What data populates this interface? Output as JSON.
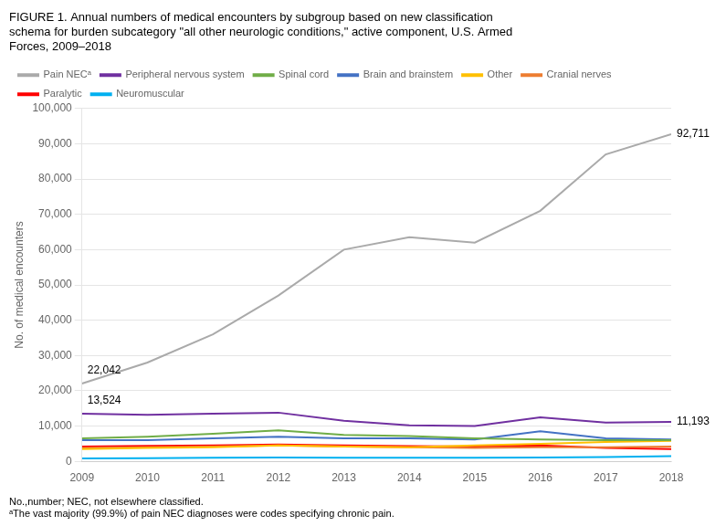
{
  "chart_data": {
    "type": "line",
    "title": "FIGURE 1. Annual numbers of medical encounters by subgroup based on new classification\nschema for burden subcategory \"all other neurologic conditions,\" active component, U.S. Armed\nForces, 2009–2018",
    "ylabel": "No. of medical encounters",
    "x": [
      2009,
      2010,
      2011,
      2012,
      2013,
      2014,
      2015,
      2016,
      2017,
      2018
    ],
    "xlim": [
      2009,
      2018
    ],
    "xticks": [
      2009,
      2010,
      2011,
      2012,
      2013,
      2014,
      2015,
      2016,
      2017,
      2018
    ],
    "ylim": [
      0,
      100000
    ],
    "yticks": [
      0,
      {
        "value": 10000,
        "label": "10,000"
      },
      {
        "value": 20000,
        "label": "20,000"
      },
      {
        "value": 30000,
        "label": "30,000"
      },
      {
        "value": 40000,
        "label": "40,000"
      },
      {
        "value": 50000,
        "label": "50,000"
      },
      {
        "value": 60000,
        "label": "60,000"
      },
      {
        "value": 70000,
        "label": "70,000"
      },
      {
        "value": 80000,
        "label": "80,000"
      },
      {
        "value": 90000,
        "label": "90,000"
      },
      {
        "value": 100000,
        "label": "100,000"
      }
    ],
    "series": [
      {
        "name": "Pain NECᵃ",
        "color": "#aaaaaa",
        "values": [
          22042,
          28000,
          36000,
          47000,
          60000,
          63500,
          62000,
          71000,
          87000,
          92711
        ]
      },
      {
        "name": "Peripheral nervous system",
        "color": "#7030a0",
        "values": [
          13524,
          13200,
          13500,
          13800,
          11500,
          10200,
          10000,
          12500,
          11000,
          11193
        ]
      },
      {
        "name": "Spinal cord",
        "color": "#70ad47",
        "values": [
          6500,
          7000,
          7800,
          8800,
          7500,
          7200,
          6500,
          6200,
          6000,
          6000
        ]
      },
      {
        "name": "Brain and brainstem",
        "color": "#4472c4",
        "values": [
          6000,
          6000,
          6500,
          7000,
          6500,
          6500,
          6200,
          8500,
          6500,
          6200
        ]
      },
      {
        "name": "Other",
        "color": "#ffc000",
        "values": [
          3500,
          3800,
          4000,
          4500,
          4200,
          4000,
          4500,
          5000,
          5500,
          5800
        ]
      },
      {
        "name": "Cranial nerves",
        "color": "#ed7d31",
        "values": [
          3800,
          4000,
          4200,
          4500,
          4200,
          4000,
          3800,
          4000,
          4000,
          4200
        ]
      },
      {
        "name": "Paralytic",
        "color": "#ff0000",
        "values": [
          4200,
          4400,
          4500,
          4800,
          4500,
          4300,
          4200,
          4500,
          3800,
          3500
        ]
      },
      {
        "name": "Neuromuscular",
        "color": "#00b0f0",
        "values": [
          800,
          900,
          1000,
          1100,
          1000,
          1000,
          1000,
          1100,
          1200,
          1500
        ]
      }
    ],
    "annotations": [
      {
        "text": "22,042",
        "x": 2009,
        "y": 22042
      },
      {
        "text": "13,524",
        "x": 2009,
        "y": 13524
      },
      {
        "text": "92,711",
        "x": 2018,
        "y": 92711
      },
      {
        "text": "11,193",
        "x": 2018,
        "y": 11193
      }
    ],
    "footnotes": [
      "No.,number; NEC, not elsewhere classified.",
      "ᵃThe vast majority (99.9%) of pain NEC diagnoses were codes specifying chronic pain."
    ],
    "grid": "y",
    "legend": "upper left"
  }
}
